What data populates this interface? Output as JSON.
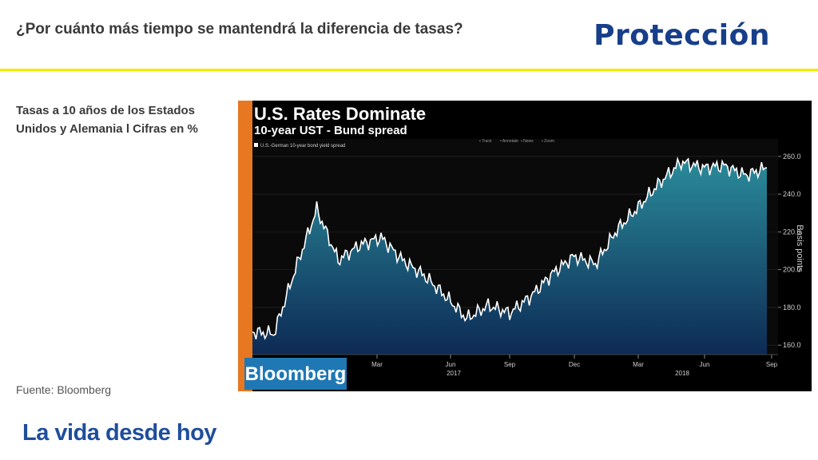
{
  "slide": {
    "title": "¿Por cuánto más tiempo se mantendrá la diferencia de tasas?",
    "brand": "Protección",
    "subtitle": "Tasas a 10 años de los Estados Unidos y Alemania l Cifras en %",
    "source": "Fuente: Bloomberg",
    "slogan": "La vida desde hoy",
    "colors": {
      "brand": "#173e8a",
      "rule": "#f2ea00",
      "slogan": "#1f4e9b"
    }
  },
  "chart_data": {
    "type": "area",
    "title": "U.S. Rates Dominate",
    "subtitle": "10-year UST - Bund spread",
    "legend": "U.S.-German 10-year bond yield spread",
    "toolbar": [
      "Track",
      "Annotate",
      "News",
      "Zoom"
    ],
    "ylabel": "Basis points",
    "yticks": [
      "260.0",
      "240.0",
      "220.0",
      "200.0",
      "180.0",
      "160.0"
    ],
    "ylim": [
      155,
      265
    ],
    "xticks": [
      "Mar",
      "Jun",
      "Sep",
      "Dec",
      "Mar",
      "Jun",
      "Sep"
    ],
    "years": [
      "2017",
      "2018"
    ],
    "logo": "Bloomberg",
    "x": [
      "2016-09",
      "2016-10",
      "2016-11",
      "2016-12",
      "2017-01",
      "2017-02",
      "2017-03",
      "2017-04",
      "2017-05",
      "2017-06",
      "2017-07",
      "2017-08",
      "2017-09",
      "2017-10",
      "2017-11",
      "2017-12",
      "2018-01",
      "2018-02",
      "2018-03",
      "2018-04",
      "2018-05",
      "2018-06",
      "2018-07",
      "2018-08",
      "2018-09"
    ],
    "values": [
      167,
      166,
      200,
      232,
      205,
      213,
      217,
      205,
      197,
      186,
      174,
      181,
      177,
      186,
      198,
      207,
      203,
      221,
      233,
      246,
      257,
      254,
      255,
      250,
      254
    ],
    "colors": {
      "line": "#ffffff",
      "fill_top": "#2a8b9a",
      "fill_bottom": "#0d2a55",
      "background": "#000000",
      "accent": "#e87722"
    }
  }
}
